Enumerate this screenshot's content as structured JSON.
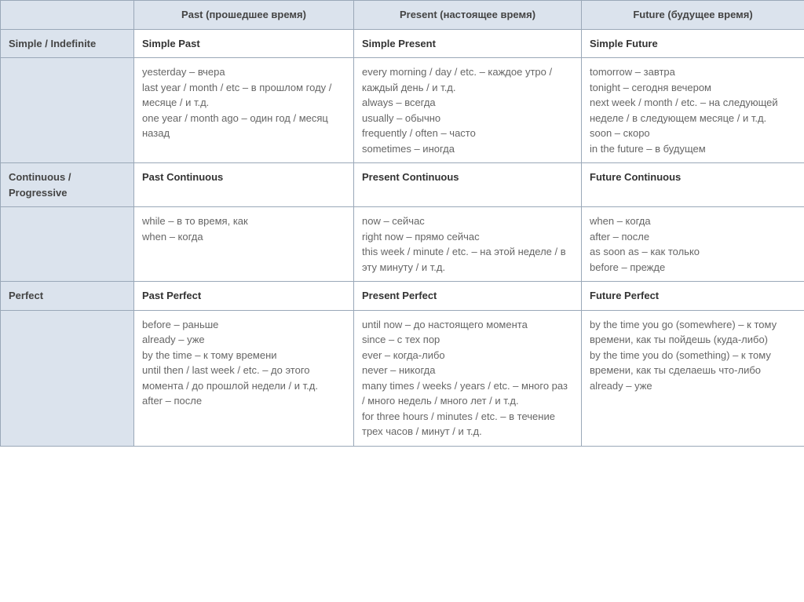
{
  "headers": {
    "blank": "",
    "past": "Past (прошедшее время)",
    "present": "Present (настоящее время)",
    "future": "Future (будущее время)"
  },
  "rows": {
    "simple": {
      "label": "Simple / Indefinite",
      "past_title": "Simple Past",
      "present_title": "Simple Present",
      "future_title": "Simple Future",
      "past_body": "yesterday – вчера\nlast year / month / etc – в прошлом году / месяце / и т.д.\none year / month ago – один год / месяц назад",
      "present_body": "every morning / day / etc. – каждое утро / каждый день / и т.д.\nalways – всегда\nusually – обычно\nfrequently / often – часто\nsometimes – иногда",
      "future_body": "tomorrow – завтра\ntonight – сегодня вечером\nnext week / month / etc. – на следующей неделе / в следующем месяце / и т.д.\nsoon – скоро\nin the future – в будущем"
    },
    "continuous": {
      "label": "Continuous / Progressive",
      "past_title": "Past Continuous",
      "present_title": "Present Continuous",
      "future_title": "Future Continuous",
      "past_body": "while – в то время, как\nwhen – когда",
      "present_body": "now – сейчас\nright now – прямо сейчас\nthis week / minute / etc. – на этой неделе / в эту минуту / и т.д.",
      "future_body": "when – когда\nafter – после\nas soon as – как только\nbefore – прежде"
    },
    "perfect": {
      "label": "Perfect",
      "past_title": "Past Perfect",
      "present_title": "Present Perfect",
      "future_title": "Future Perfect",
      "past_body": "before – раньше\nalready – уже\nby the time – к тому времени\nuntil then / last week / etc. – до этого момента / до прошлой недели / и т.д.\nafter – после",
      "present_body": "until now – до настоящего момента\nsince – с тех пор\never – когда-либо\nnever – никогда\nmany times / weeks / years / etc. – много раз / много недель / много лет / и т.д.\nfor three hours / minutes / etc. – в течение трех часов / минут / и т.д.",
      "future_body": "by the time you go (somewhere) – к тому времени, как ты пойдешь (куда-либо)\nby the time you do (something) – к тому времени, как ты сделаешь что-либо\nalready – уже"
    }
  }
}
